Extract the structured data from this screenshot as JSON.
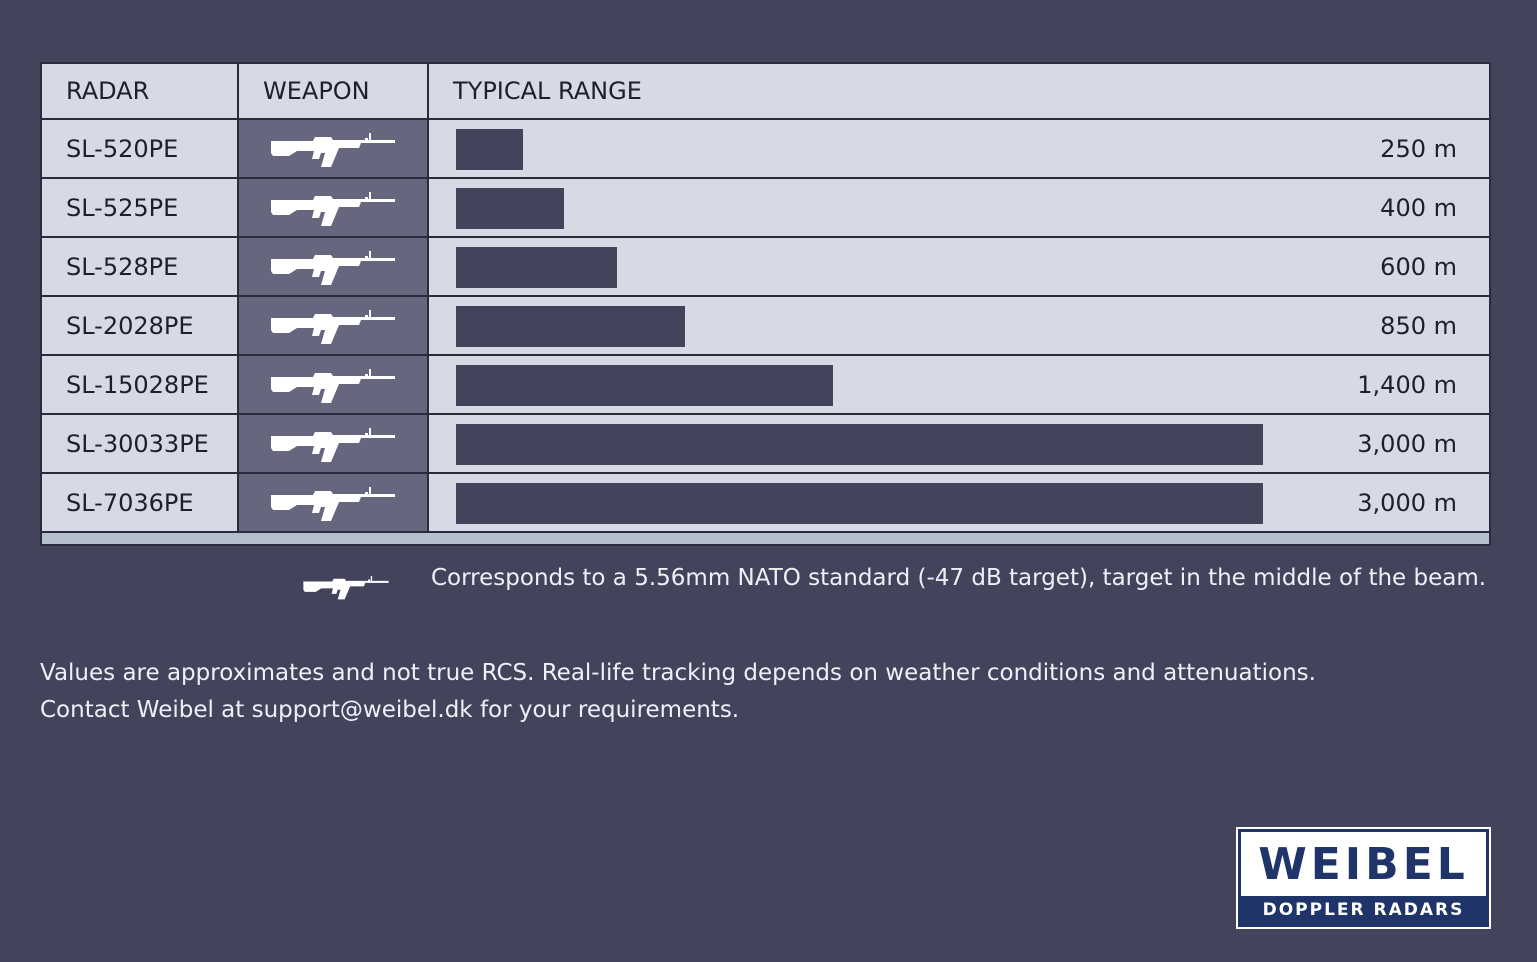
{
  "table": {
    "headers": {
      "radar": "RADAR",
      "weapon": "WEAPON",
      "range": "TYPICAL RANGE"
    },
    "rows": [
      {
        "radar": "SL-520PE",
        "weapon_icon": "rifle-icon",
        "range_m": 250,
        "range_label": "250 m"
      },
      {
        "radar": "SL-525PE",
        "weapon_icon": "rifle-icon",
        "range_m": 400,
        "range_label": "400 m"
      },
      {
        "radar": "SL-528PE",
        "weapon_icon": "rifle-icon",
        "range_m": 600,
        "range_label": "600 m"
      },
      {
        "radar": "SL-2028PE",
        "weapon_icon": "rifle-icon",
        "range_m": 850,
        "range_label": "850 m"
      },
      {
        "radar": "SL-15028PE",
        "weapon_icon": "rifle-icon",
        "range_m": 1400,
        "range_label": "1,400 m"
      },
      {
        "radar": "SL-30033PE",
        "weapon_icon": "rifle-icon",
        "range_m": 3000,
        "range_label": "3,000 m"
      },
      {
        "radar": "SL-7036PE",
        "weapon_icon": "rifle-icon",
        "range_m": 3000,
        "range_label": "3,000 m"
      }
    ]
  },
  "chart_data": {
    "type": "bar",
    "orientation": "horizontal",
    "title": "",
    "xlabel": "TYPICAL RANGE",
    "ylabel": "RADAR",
    "categories": [
      "SL-520PE",
      "SL-525PE",
      "SL-528PE",
      "SL-2028PE",
      "SL-15028PE",
      "SL-30033PE",
      "SL-7036PE"
    ],
    "values": [
      250,
      400,
      600,
      850,
      1400,
      3000,
      3000
    ],
    "unit": "m",
    "xlim": [
      0,
      3000
    ]
  },
  "legend": {
    "icon": "rifle-icon",
    "text": "Corresponds to a 5.56mm NATO standard (-47 dB target), target in the middle of the beam."
  },
  "notes": {
    "line1": "Values are approximates and not true RCS. Real-life tracking depends on weather conditions and attenuations.",
    "line2": "Contact Weibel at support@weibel.dk for your requirements."
  },
  "logo": {
    "name": "WEIBEL",
    "tagline": "DOPPLER RADARS"
  },
  "colors": {
    "background": "#43445c",
    "table_bg": "#d5dae4",
    "bar": "#43445c",
    "weapon_cell": "#66667e",
    "logo_blue": "#1f3468"
  }
}
